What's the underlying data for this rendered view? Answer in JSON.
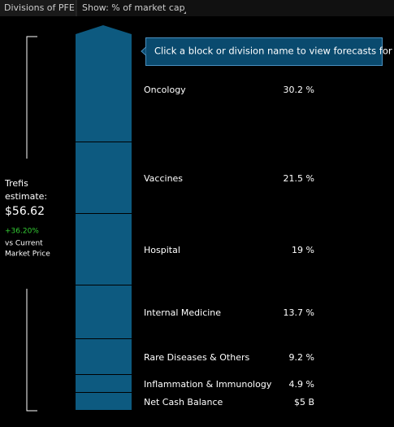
{
  "header": {
    "tab": "Divisions of PFE",
    "show": "Show: % of market cap"
  },
  "tooltip": "Click a block or division name to view forecasts for it",
  "estimate": {
    "line1": "Trefis",
    "line2": "estimate:",
    "price": "$56.62",
    "change": "+36.20%",
    "note1": "vs Current",
    "note2": "Market Price"
  },
  "divisions": [
    {
      "name": "Oncology",
      "value": "30.2 %"
    },
    {
      "name": "Vaccines",
      "value": "21.5 %"
    },
    {
      "name": "Hospital",
      "value": "19 %"
    },
    {
      "name": "Internal Medicine",
      "value": "13.7 %"
    },
    {
      "name": "Rare Diseases & Others",
      "value": "9.2 %"
    },
    {
      "name": "Inflammation & Immunology",
      "value": "4.9 %"
    },
    {
      "name": "Net Cash Balance",
      "value": "$5 B"
    }
  ]
}
